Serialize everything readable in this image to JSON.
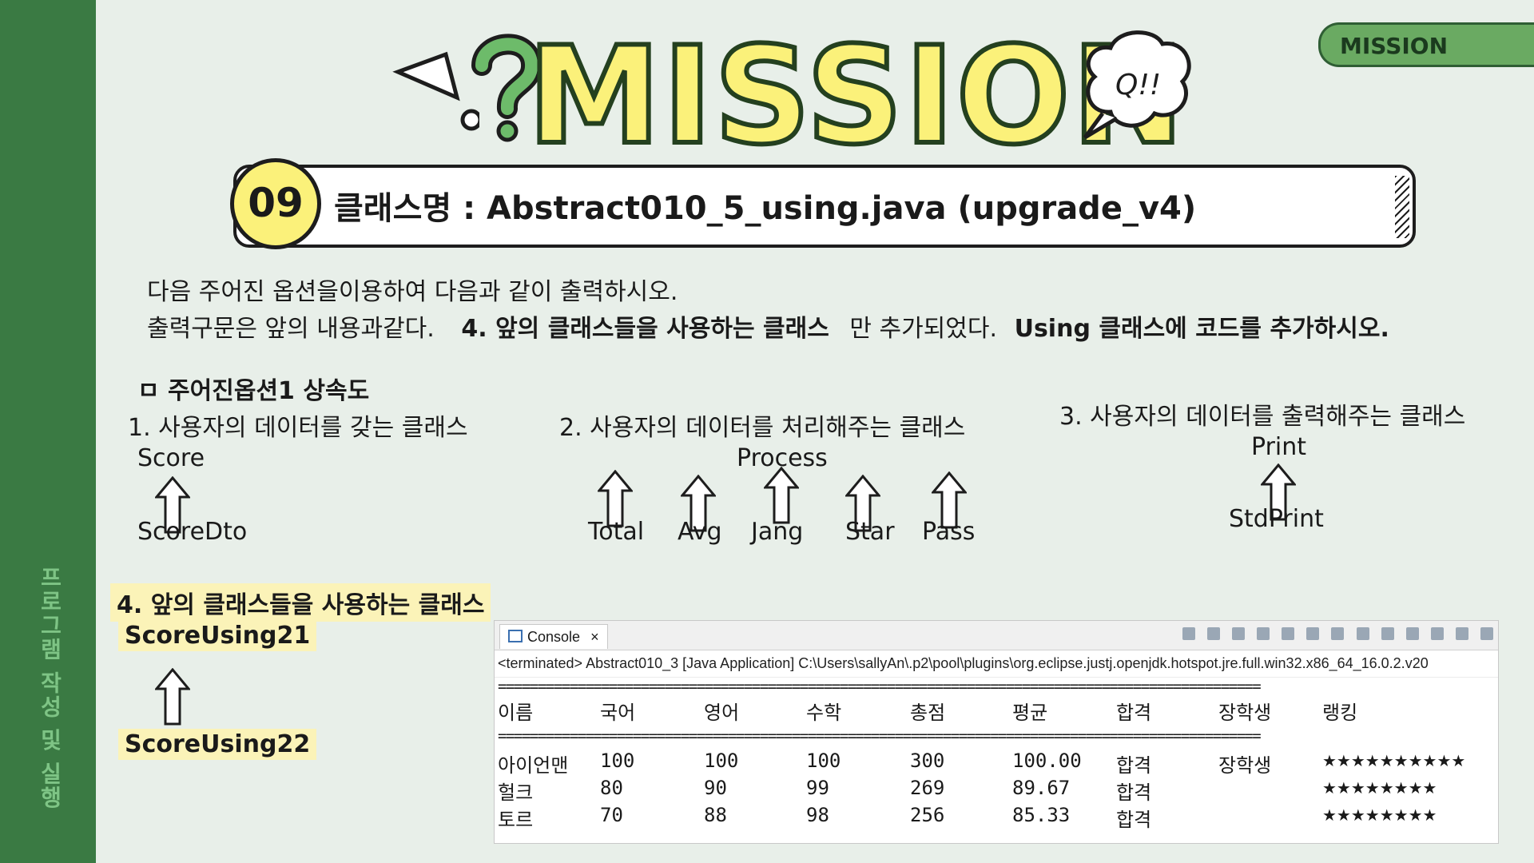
{
  "sidebar": {
    "label": "프로그램 작성 및 실행"
  },
  "tag": {
    "label": "MISSION"
  },
  "banner": {
    "title": "MISSION",
    "bubble_text": "Q!!"
  },
  "mission": {
    "number": "09",
    "title": "클래스명 : Abstract010_5_using.java  (upgrade_v4)"
  },
  "instructions": {
    "line1": "다음 주어진 옵션을이용하여 다음과 같이 출력하시오.",
    "line2_pre": "출력구문은 앞의 내용과같다.",
    "line2_bold": "4. 앞의 클래스들을 사용하는 클래스",
    "line2_mid": "만 추가되었다.",
    "line2_bold2": "Using 클래스에 코드를 추가하시오."
  },
  "diagram": {
    "heading": "ㅁ 주어진옵션1 상속도",
    "group1": {
      "title": "1. 사용자의 데이터를 갖는 클래스",
      "parent": "Score",
      "child": "ScoreDto"
    },
    "group2": {
      "title": "2. 사용자의 데이터를 처리해주는 클래스",
      "parent": "Process",
      "children": [
        "Total",
        "Avg",
        "Jang",
        "Star",
        "Pass"
      ]
    },
    "group3": {
      "title": "3. 사용자의 데이터를 출력해주는 클래스",
      "parent": "Print",
      "child": "StdPrint"
    },
    "group4": {
      "title": "4. 앞의 클래스들을 사용하는 클래스",
      "parent": "ScoreUsing21",
      "child": "ScoreUsing22"
    }
  },
  "console": {
    "tab_label": "Console",
    "status": "<terminated> Abstract010_3 [Java Application] C:\\Users\\sallyAn\\.p2\\pool\\plugins\\org.eclipse.justj.openjdk.hotspot.jre.full.win32.x86_64_16.0.2.v20",
    "separator": "================================================================================================",
    "headers": [
      "이름",
      "국어",
      "영어",
      "수학",
      "총점",
      "평균",
      "합격",
      "장학생",
      "랭킹"
    ],
    "rows": [
      [
        "아이언맨",
        "100",
        "100",
        "100",
        "300",
        "100.00",
        "합격",
        "장학생",
        "★★★★★★★★★★"
      ],
      [
        "헐크",
        "80",
        "90",
        "99",
        "269",
        "89.67",
        "합격",
        "",
        "★★★★★★★★"
      ],
      [
        "토르",
        "70",
        "88",
        "98",
        "256",
        "85.33",
        "합격",
        "",
        "★★★★★★★★"
      ]
    ]
  },
  "colors": {
    "accent_green": "#3a7a43",
    "highlight_yellow": "#fbf17a"
  }
}
